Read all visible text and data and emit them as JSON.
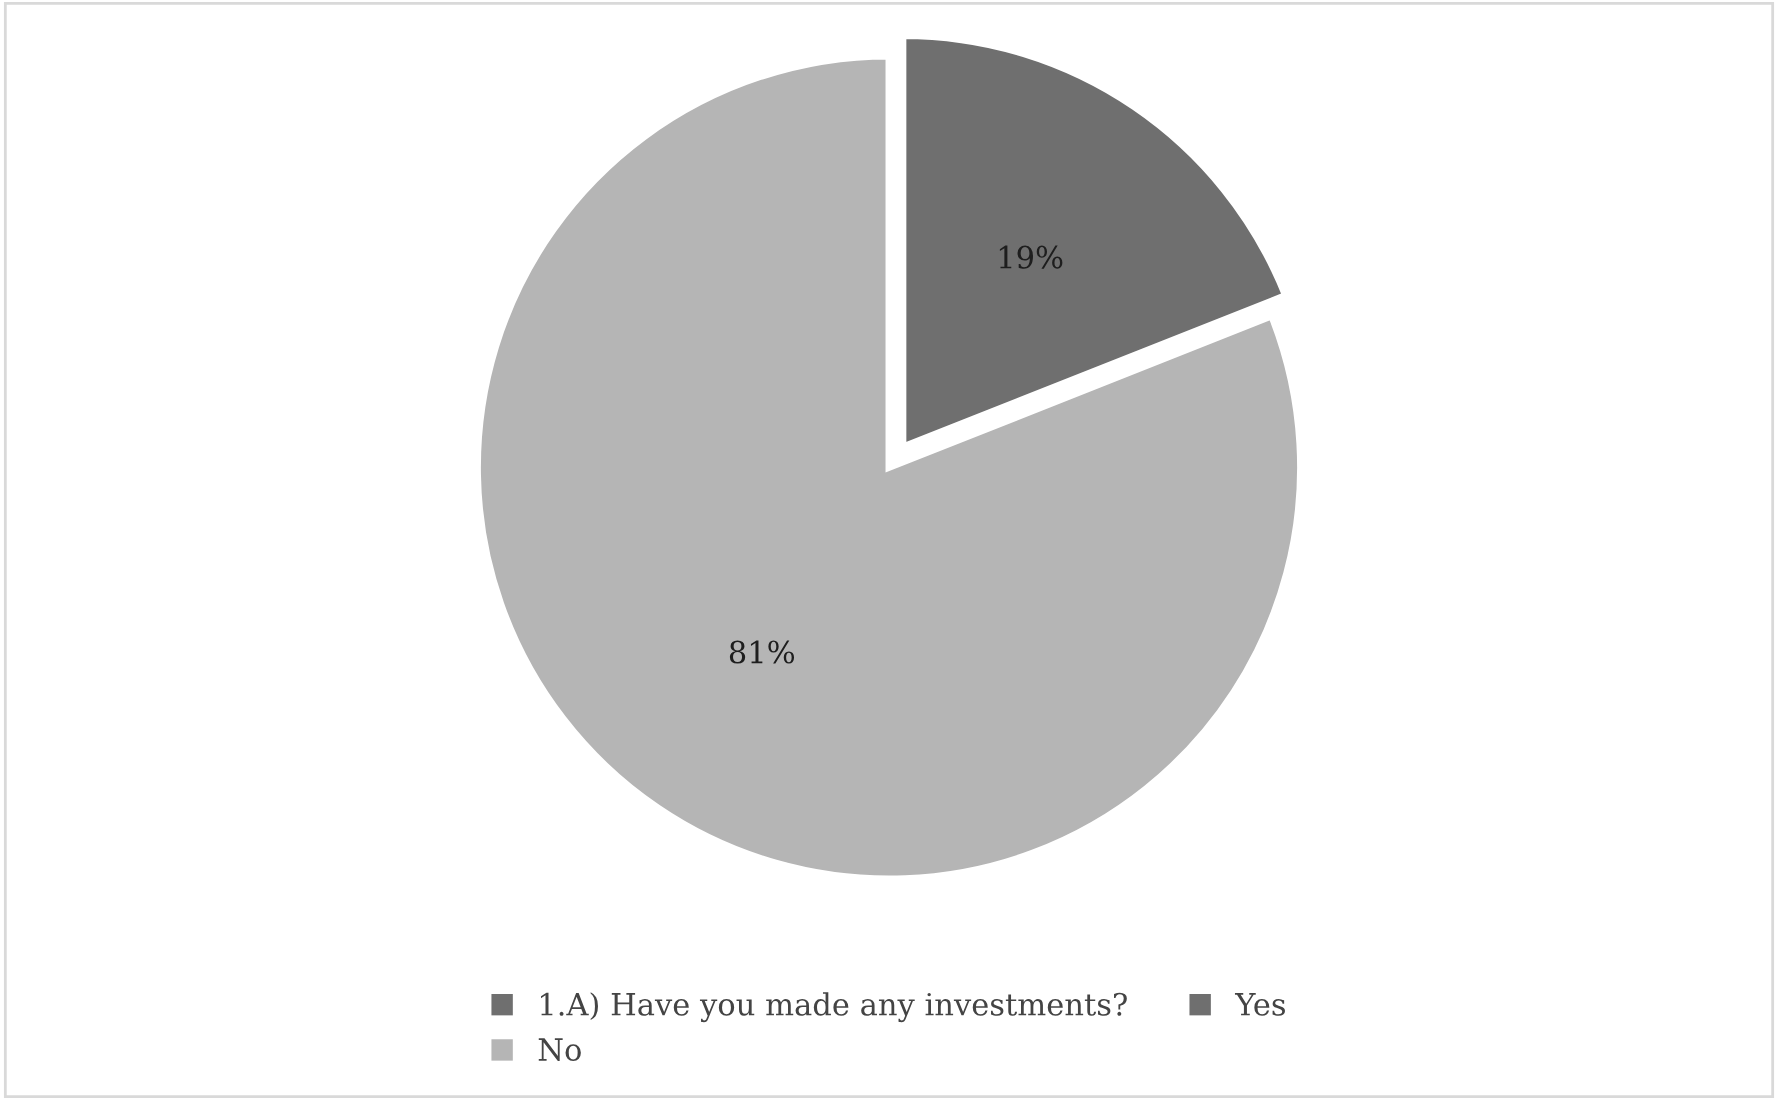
{
  "chart_data": {
    "type": "pie",
    "categories": [
      "1.A) Have you made any investments?",
      "Yes",
      "No"
    ],
    "values": [
      0,
      19,
      81
    ],
    "colors": [
      "#6f6f6f",
      "#6f6f6f",
      "#b5b5b5"
    ],
    "value_labels": [
      null,
      "19%",
      "81%"
    ],
    "legend": "bottom"
  }
}
